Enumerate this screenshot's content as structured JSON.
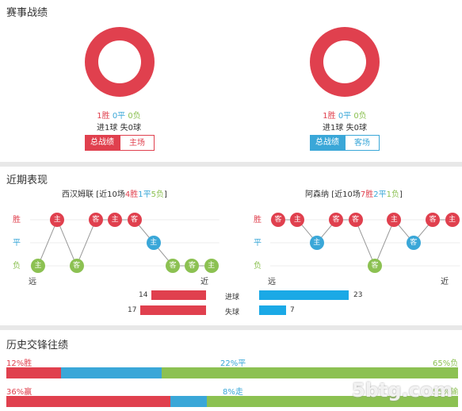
{
  "sections": {
    "record_title": "赛事战绩",
    "recent_title": "近期表现",
    "h2h_title": "历史交锋往绩"
  },
  "left_record": {
    "win": "1胜",
    "draw": "0平",
    "loss": "0负",
    "goals": "进1球",
    "conceded": "失0球",
    "btn_total": "总战绩",
    "btn_side": "主场",
    "donut_color": "#e0404e"
  },
  "right_record": {
    "win": "1胜",
    "draw": "0平",
    "loss": "0负",
    "goals": "进1球",
    "conceded": "失0球",
    "btn_total": "总战绩",
    "btn_side": "客场",
    "donut_color": "#e0404e"
  },
  "recent": {
    "left": {
      "team": "西汉姆联",
      "summary_prefix": "[近10场",
      "win": "4胜",
      "draw": "1平",
      "loss": "5负",
      "summary_suffix": "]",
      "games": [
        {
          "venue": "主",
          "result": "L"
        },
        {
          "venue": "主",
          "result": "W"
        },
        {
          "venue": "客",
          "result": "L"
        },
        {
          "venue": "客",
          "result": "W"
        },
        {
          "venue": "主",
          "result": "W"
        },
        {
          "venue": "客",
          "result": "W"
        },
        {
          "venue": "主",
          "result": "D"
        },
        {
          "venue": "客",
          "result": "L"
        },
        {
          "venue": "客",
          "result": "L"
        },
        {
          "venue": "主",
          "result": "L"
        }
      ],
      "far": "远",
      "near": "近"
    },
    "right": {
      "team": "阿森纳",
      "summary_prefix": "[近10场",
      "win": "7胜",
      "draw": "2平",
      "loss": "1负",
      "summary_suffix": "]",
      "games": [
        {
          "venue": "客",
          "result": "W"
        },
        {
          "venue": "主",
          "result": "W"
        },
        {
          "venue": "主",
          "result": "D"
        },
        {
          "venue": "客",
          "result": "W"
        },
        {
          "venue": "客",
          "result": "W"
        },
        {
          "venue": "客",
          "result": "L"
        },
        {
          "venue": "主",
          "result": "W"
        },
        {
          "venue": "客",
          "result": "D"
        },
        {
          "venue": "客",
          "result": "W"
        },
        {
          "venue": "主",
          "result": "W"
        }
      ],
      "far": "远",
      "near": "近"
    },
    "axis": {
      "win": "胜",
      "draw": "平",
      "loss": "负"
    },
    "goals_label": "进球",
    "conceded_label": "失球",
    "left_goals": 14,
    "left_conceded": 17,
    "right_goals": 23,
    "right_conceded": 7
  },
  "h2h": {
    "row1": {
      "win_label": "12%胜",
      "draw_label": "22%平",
      "loss_label": "65%负",
      "win": 12,
      "draw": 22,
      "loss": 65
    },
    "row2": {
      "win_label": "36%赢",
      "draw_label": "8%走",
      "loss_label": "55%输",
      "win": 36,
      "draw": 8,
      "loss": 55
    }
  },
  "watermark": "5btg.com"
}
